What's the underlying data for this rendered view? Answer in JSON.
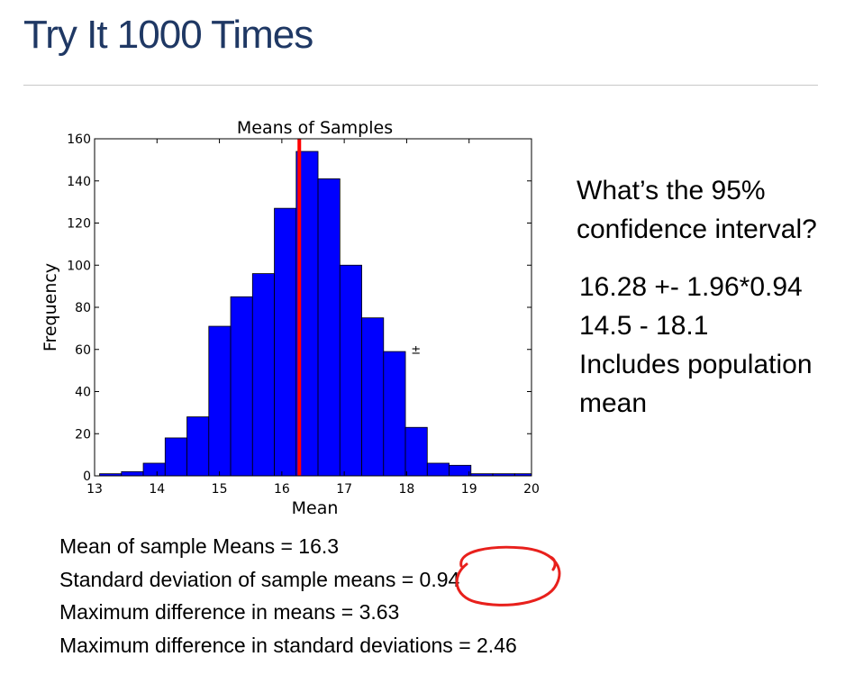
{
  "slide": {
    "title": "Try It 1000 Times",
    "question_lines": [
      "What’s the 95%",
      "confidence interval?"
    ],
    "answer_lines": [
      "16.28 +- 1.96*0.94",
      "14.5 - 18.1",
      "Includes population",
      "mean"
    ],
    "stats_lines": [
      "Mean of sample Means = 16.3",
      "Standard deviation of sample means = 0.94",
      "Maximum difference in means = 3.63",
      "Maximum difference in standard deviations = 2.46"
    ],
    "annotation_color": "#e8201c"
  },
  "chart_data": {
    "type": "bar",
    "title": "Means of Samples",
    "xlabel": "Mean",
    "ylabel": "Frequency",
    "xlim": [
      13,
      20
    ],
    "ylim": [
      0,
      160
    ],
    "x_ticks": [
      13,
      14,
      15,
      16,
      17,
      18,
      19,
      20
    ],
    "x_tick_labels": [
      "13",
      "14",
      "15",
      "16",
      "17",
      "18",
      "19",
      "20"
    ],
    "y_ticks": [
      0,
      20,
      40,
      60,
      80,
      100,
      120,
      140,
      160
    ],
    "y_tick_labels": [
      "0",
      "20",
      "40",
      "60",
      "80",
      "100",
      "120",
      "140",
      "160"
    ],
    "bins": [
      [
        13.08,
        13.43
      ],
      [
        13.43,
        13.78
      ],
      [
        13.78,
        14.13
      ],
      [
        14.13,
        14.48
      ],
      [
        14.48,
        14.83
      ],
      [
        14.83,
        15.18
      ],
      [
        15.18,
        15.53
      ],
      [
        15.53,
        15.88
      ],
      [
        15.88,
        16.23
      ],
      [
        16.23,
        16.58
      ],
      [
        16.58,
        16.93
      ],
      [
        16.93,
        17.28
      ],
      [
        17.28,
        17.63
      ],
      [
        17.63,
        17.98
      ],
      [
        17.98,
        18.33
      ],
      [
        18.33,
        18.68
      ],
      [
        18.68,
        19.03
      ],
      [
        19.03,
        19.38
      ],
      [
        19.38,
        19.73
      ],
      [
        19.73,
        20.0
      ]
    ],
    "values": [
      1,
      2,
      6,
      18,
      28,
      71,
      85,
      96,
      127,
      154,
      141,
      100,
      75,
      59,
      23,
      6,
      5,
      1,
      1,
      1
    ],
    "bar_color": "#0000ff",
    "bar_edge_color": "#000000",
    "mean_line": {
      "x": 16.28,
      "color": "#ff0000"
    },
    "annotation_text": "±",
    "annotation_position": {
      "x": 18.07,
      "y": 58
    },
    "grid": false,
    "legend": "none"
  }
}
